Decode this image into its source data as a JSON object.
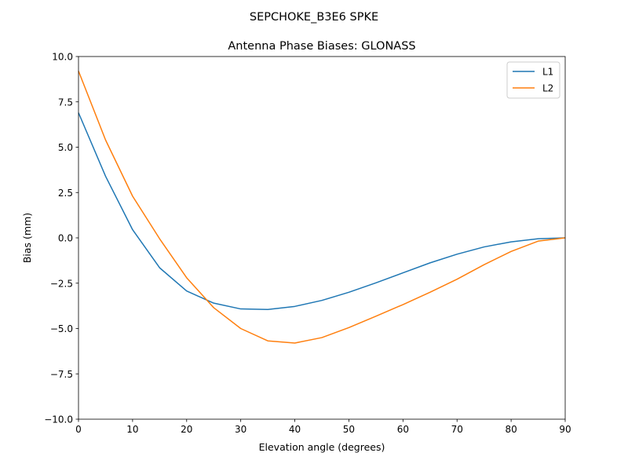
{
  "chart_data": {
    "type": "line",
    "suptitle": "SEPCHOKE_B3E6   SPKE",
    "title": "Antenna Phase Biases: GLONASS",
    "xlabel": "Elevation angle (degrees)",
    "ylabel": "Bias (mm)",
    "xlim": [
      0,
      90
    ],
    "ylim": [
      -10,
      10
    ],
    "xticks": [
      0,
      10,
      20,
      30,
      40,
      50,
      60,
      70,
      80,
      90
    ],
    "yticks": [
      -10,
      -7.5,
      -5,
      -2.5,
      0,
      2.5,
      5,
      7.5,
      10
    ],
    "xtick_labels": [
      "0",
      "10",
      "20",
      "30",
      "40",
      "50",
      "60",
      "70",
      "80",
      "90"
    ],
    "ytick_labels": [
      "−10.0",
      "−7.5",
      "−5.0",
      "−2.5",
      "0.0",
      "2.5",
      "5.0",
      "7.5",
      "10.0"
    ],
    "grid": false,
    "legend_position": "top-right",
    "x": [
      0,
      5,
      10,
      15,
      20,
      25,
      30,
      35,
      40,
      45,
      50,
      55,
      60,
      65,
      70,
      75,
      80,
      85,
      90
    ],
    "series": [
      {
        "name": "L1",
        "color": "#1f77b4",
        "values": [
          6.9,
          3.4,
          0.45,
          -1.65,
          -2.93,
          -3.6,
          -3.92,
          -3.95,
          -3.78,
          -3.45,
          -3.0,
          -2.48,
          -1.93,
          -1.38,
          -0.9,
          -0.5,
          -0.22,
          -0.05,
          0.0
        ]
      },
      {
        "name": "L2",
        "color": "#ff7f0e",
        "values": [
          9.2,
          5.4,
          2.3,
          -0.05,
          -2.2,
          -3.85,
          -5.0,
          -5.68,
          -5.8,
          -5.5,
          -4.95,
          -4.32,
          -3.68,
          -3.0,
          -2.28,
          -1.48,
          -0.75,
          -0.18,
          0.0
        ]
      }
    ]
  }
}
